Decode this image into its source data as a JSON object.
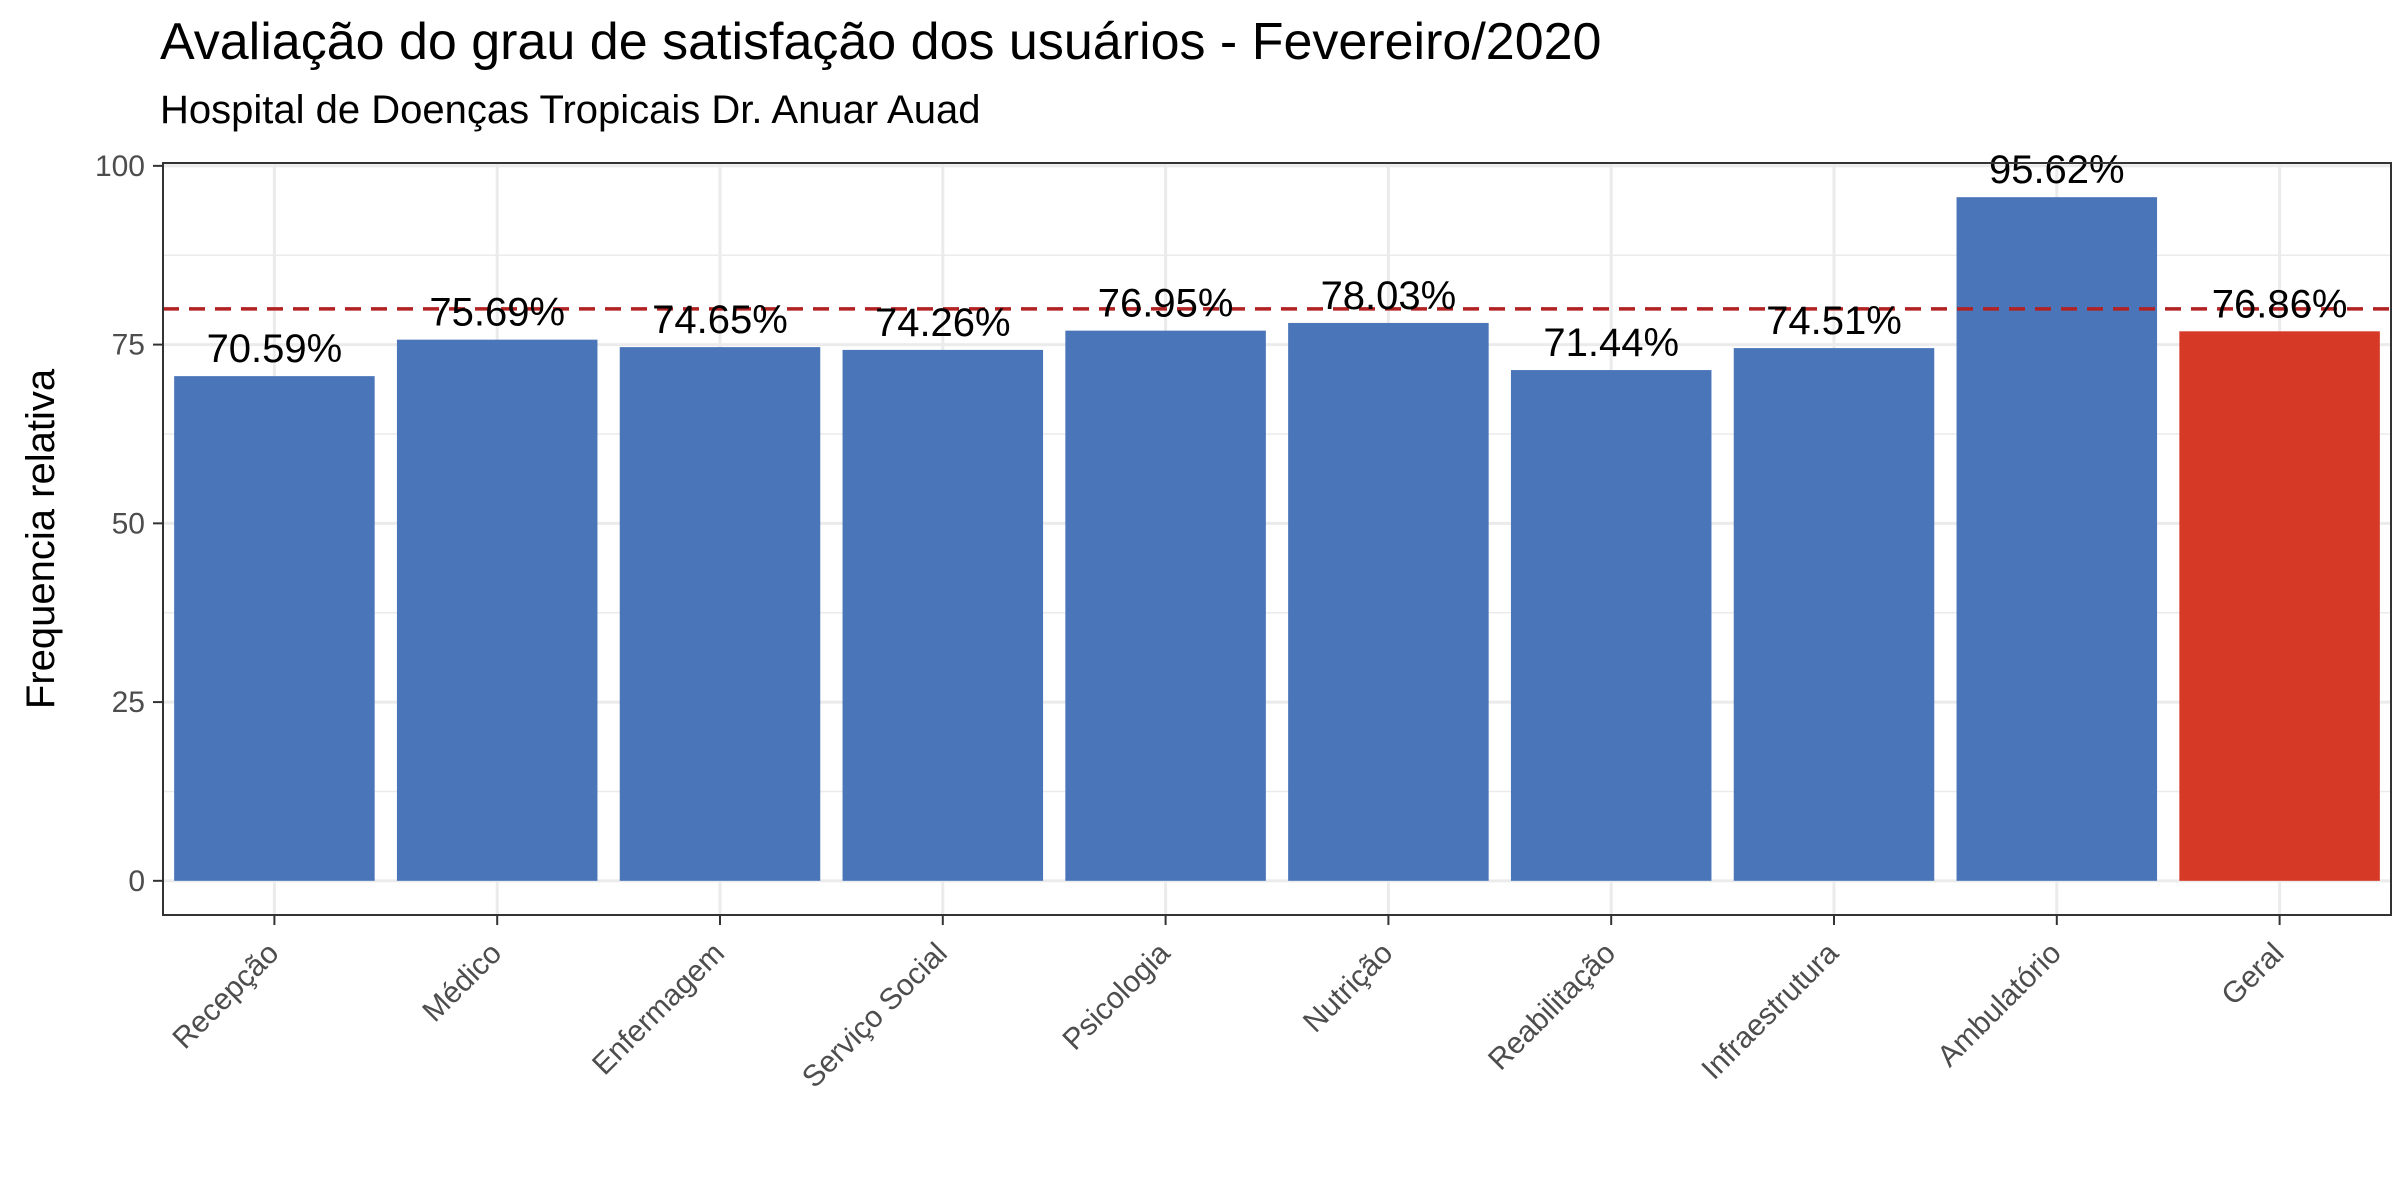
{
  "chart_data": {
    "type": "bar",
    "title": "Avaliação do grau de satisfação dos usuários - Fevereiro/2020",
    "subtitle": "Hospital de Doenças Tropicais Dr. Anuar Auad",
    "xlabel": "",
    "ylabel": "Frequencia relativa",
    "categories": [
      "Recepção",
      "Médico",
      "Enfermagem",
      "Serviço Social",
      "Psicologia",
      "Nutrição",
      "Reabilitação",
      "Infraestrutura",
      "Ambulatório",
      "Geral"
    ],
    "values": [
      70.59,
      75.69,
      74.65,
      74.26,
      76.95,
      78.03,
      71.44,
      74.51,
      95.62,
      76.86
    ],
    "data_labels": [
      "70.59%",
      "75.69%",
      "74.65%",
      "74.26%",
      "76.95%",
      "78.03%",
      "71.44%",
      "74.51%",
      "95.62%",
      "76.86%"
    ],
    "highlight_category": "Geral",
    "reference_line": {
      "y": 80,
      "style": "dashed",
      "color": "#b22222"
    },
    "y_ticks": [
      0,
      25,
      50,
      75,
      100
    ],
    "ylim": [
      -4.78,
      100.4
    ],
    "grid": true,
    "legend": "none",
    "colors": {
      "bar": "#4a76b9",
      "highlight": "#d63a26",
      "grid": "#ebebeb",
      "panel_border": "#333333"
    }
  }
}
